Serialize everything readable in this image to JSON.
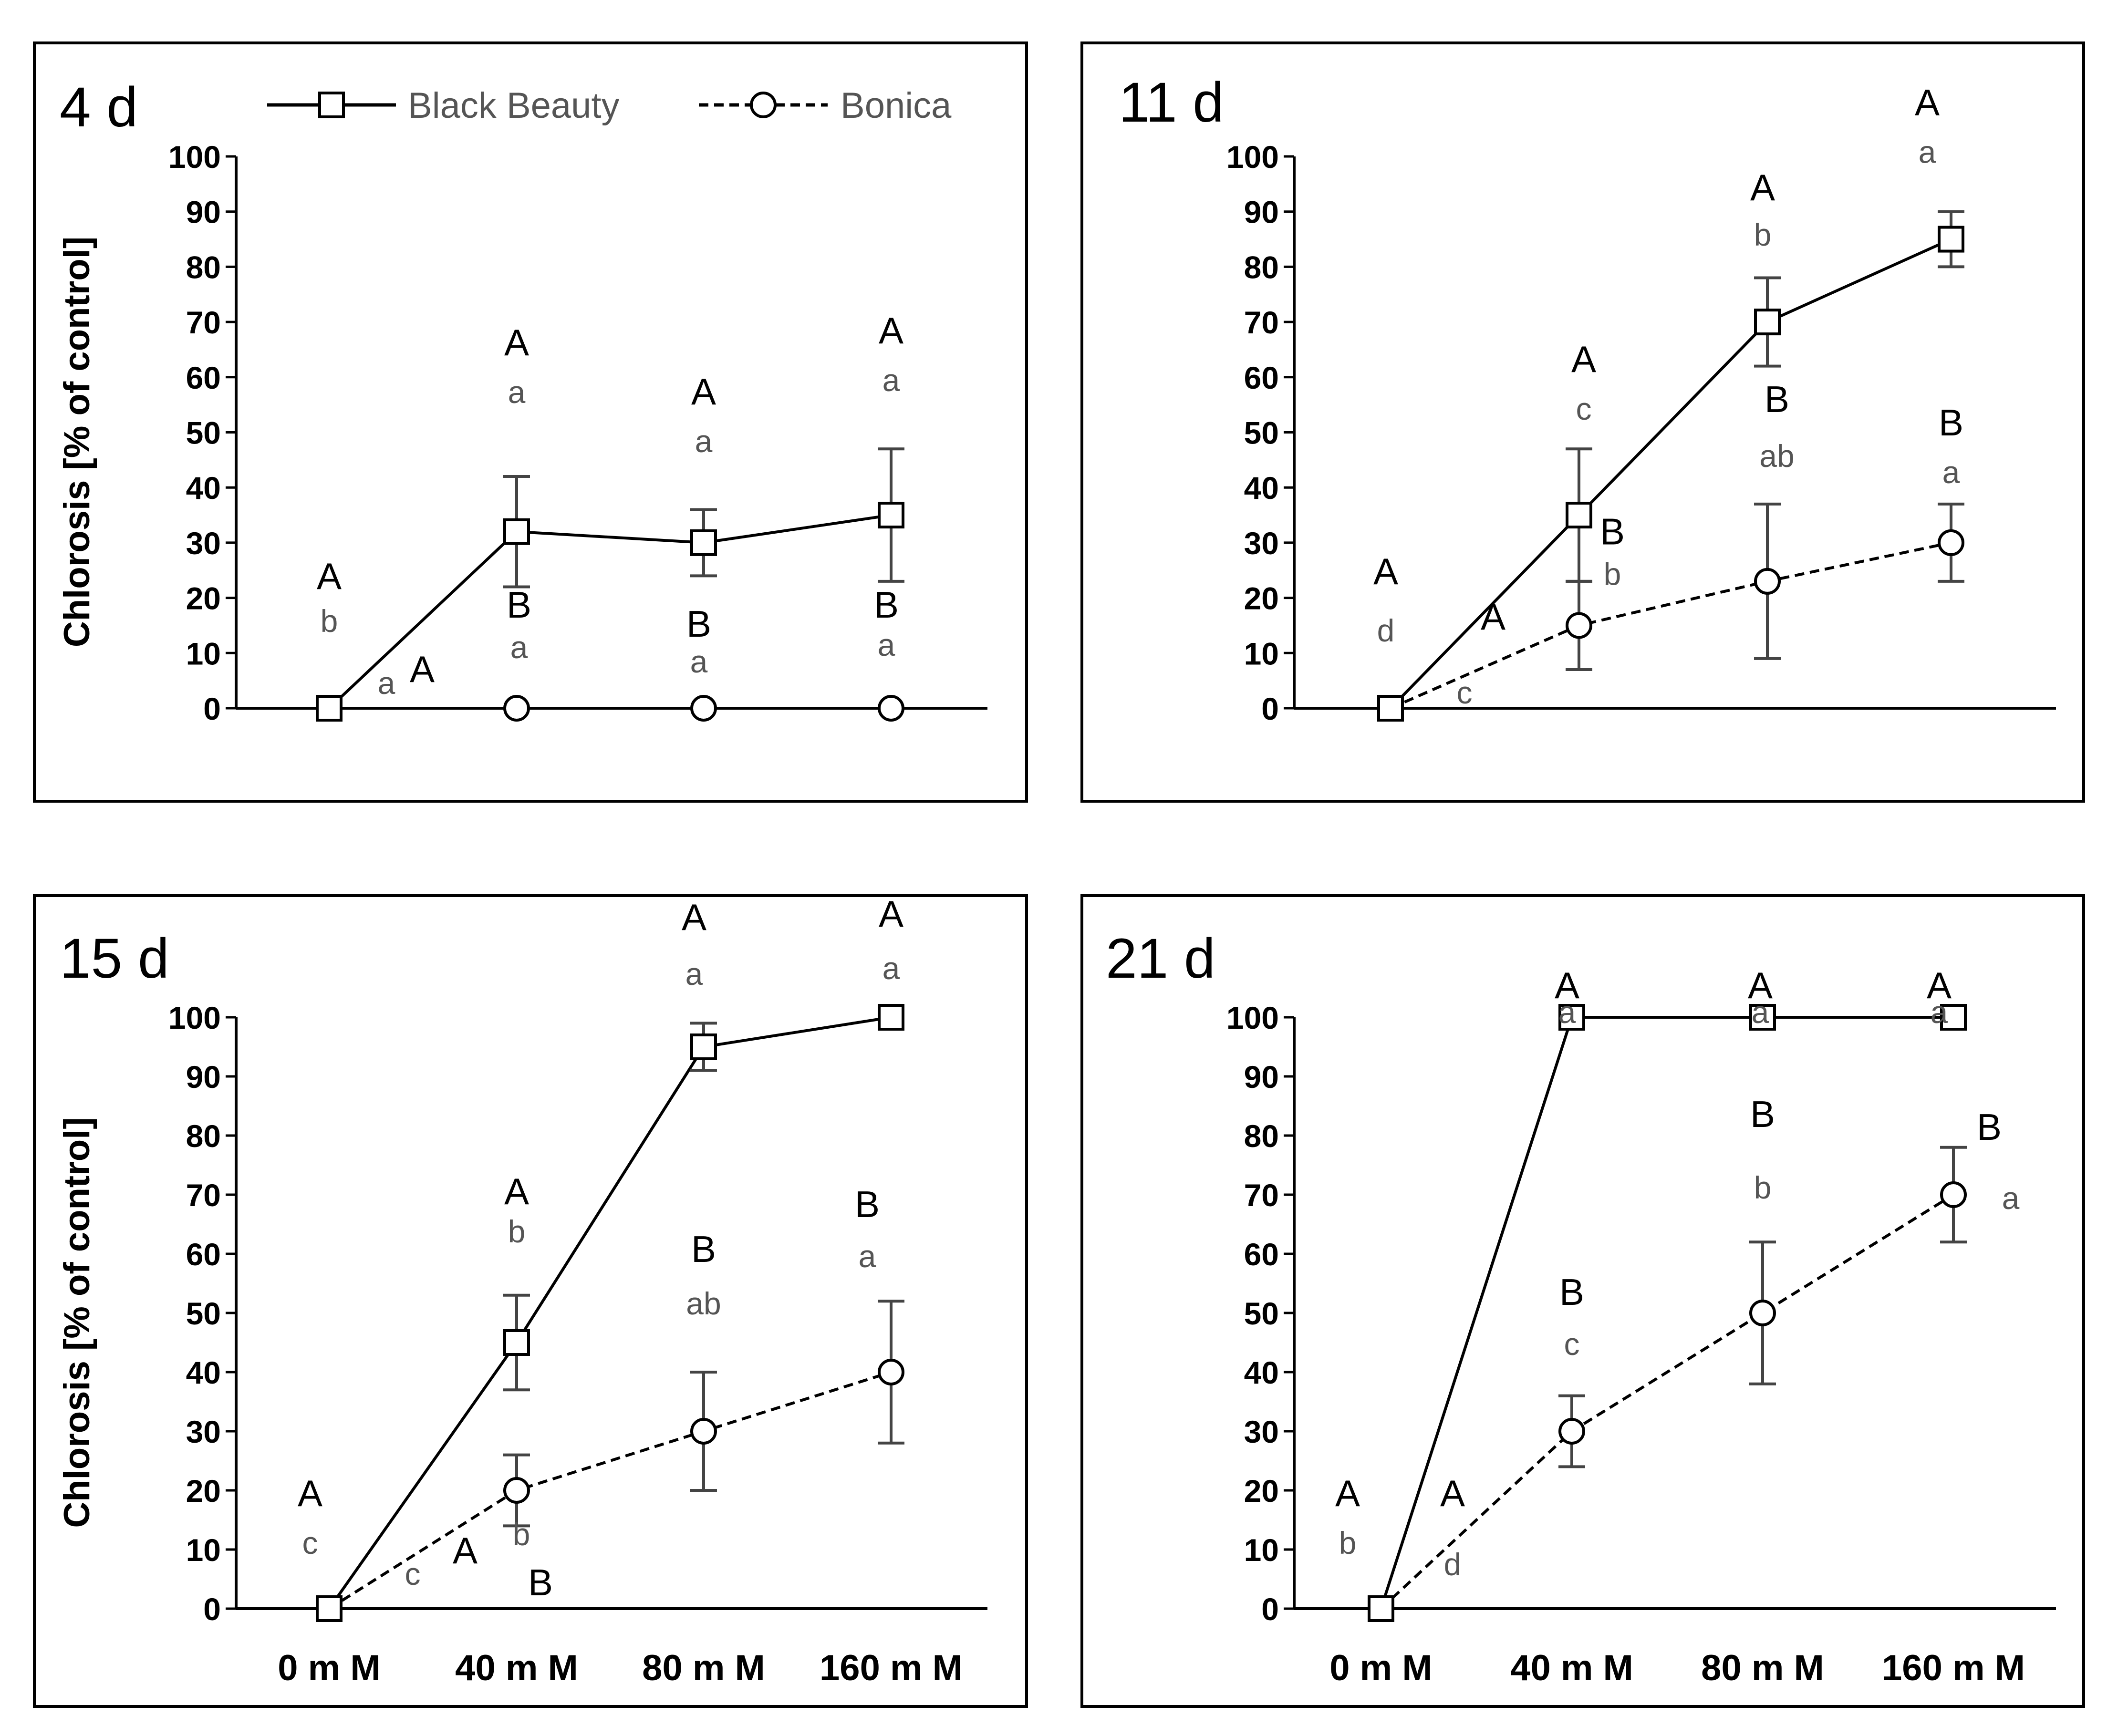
{
  "chart_data": [
    {
      "type": "line",
      "title": "4 d",
      "ylabel": "Chlorosis [% of control]",
      "xlabel": "",
      "ylim": [
        0,
        100
      ],
      "yticks": [
        0,
        10,
        20,
        30,
        40,
        50,
        60,
        70,
        80,
        90,
        100
      ],
      "categories": [
        "0 m M",
        "40 m M",
        "80 m M",
        "160 m M"
      ],
      "show_categories": false,
      "show_ylabel": true,
      "legend": {
        "position": "top",
        "entries": [
          "Black Beauty",
          "Bonica"
        ]
      },
      "series": [
        {
          "name": "Black Beauty",
          "marker": "square",
          "style": "solid",
          "values": [
            0,
            32,
            30,
            35
          ],
          "error": [
            0,
            10,
            6,
            12
          ],
          "upper_letters": [
            "A",
            "A",
            "A",
            "A"
          ],
          "lower_letters": [
            "b",
            "a",
            "a",
            "a"
          ]
        },
        {
          "name": "Bonica",
          "marker": "circle",
          "style": "dashed",
          "values": [
            0,
            0,
            0,
            0
          ],
          "error": [
            0,
            0,
            0,
            0
          ],
          "upper_letters": [
            "A",
            "B",
            "B",
            "B"
          ],
          "lower_letters": [
            "a",
            "a",
            "a",
            "a"
          ]
        }
      ]
    },
    {
      "type": "line",
      "title": "11 d",
      "ylabel": "",
      "xlabel": "",
      "ylim": [
        0,
        100
      ],
      "yticks": [
        0,
        10,
        20,
        30,
        40,
        50,
        60,
        70,
        80,
        90,
        100
      ],
      "categories": [
        "0 m M",
        "40 m M",
        "80 m M",
        "160 m M"
      ],
      "show_categories": false,
      "show_ylabel": false,
      "series": [
        {
          "name": "Black Beauty",
          "marker": "square",
          "style": "solid",
          "values": [
            0,
            35,
            70,
            85
          ],
          "error": [
            0,
            12,
            8,
            5
          ],
          "upper_letters": [
            "A",
            "A",
            "A",
            "A"
          ],
          "lower_letters": [
            "d",
            "c",
            "b",
            "a"
          ]
        },
        {
          "name": "Bonica",
          "marker": "circle",
          "style": "dashed",
          "values": [
            0,
            15,
            23,
            30
          ],
          "error": [
            0,
            8,
            14,
            7
          ],
          "upper_letters": [
            "A",
            "B",
            "B",
            "B"
          ],
          "lower_letters": [
            "c",
            "b",
            "ab",
            "a"
          ]
        }
      ]
    },
    {
      "type": "line",
      "title": "15 d",
      "ylabel": "Chlorosis [% of control]",
      "xlabel": "",
      "ylim": [
        0,
        100
      ],
      "yticks": [
        0,
        10,
        20,
        30,
        40,
        50,
        60,
        70,
        80,
        90,
        100
      ],
      "categories": [
        "0 m M",
        "40 m M",
        "80 m M",
        "160 m M"
      ],
      "show_categories": true,
      "show_ylabel": true,
      "series": [
        {
          "name": "Black Beauty",
          "marker": "square",
          "style": "solid",
          "values": [
            0,
            45,
            95,
            100
          ],
          "error": [
            0,
            8,
            4,
            0
          ],
          "upper_letters": [
            "A",
            "A",
            "A",
            "A"
          ],
          "lower_letters": [
            "c",
            "b",
            "a",
            "a"
          ]
        },
        {
          "name": "Bonica",
          "marker": "circle",
          "style": "dashed",
          "values": [
            0,
            20,
            30,
            40
          ],
          "error": [
            0,
            6,
            10,
            12
          ],
          "upper_letters": [
            "A",
            "B",
            "B",
            "B"
          ],
          "lower_letters": [
            "c",
            "b",
            "ab",
            "a"
          ]
        }
      ]
    },
    {
      "type": "line",
      "title": "21 d",
      "ylabel": "",
      "xlabel": "",
      "ylim": [
        0,
        100
      ],
      "yticks": [
        0,
        10,
        20,
        30,
        40,
        50,
        60,
        70,
        80,
        90,
        100
      ],
      "categories": [
        "0 m M",
        "40 m M",
        "80 m M",
        "160 m M"
      ],
      "show_categories": true,
      "show_ylabel": false,
      "series": [
        {
          "name": "Black Beauty",
          "marker": "square",
          "style": "solid",
          "values": [
            0,
            100,
            100,
            100
          ],
          "error": [
            0,
            0,
            0,
            0
          ],
          "upper_letters": [
            "A",
            "A",
            "A",
            "A"
          ],
          "lower_letters": [
            "b",
            "a",
            "a",
            "a"
          ]
        },
        {
          "name": "Bonica",
          "marker": "circle",
          "style": "dashed",
          "values": [
            0,
            30,
            50,
            70
          ],
          "error": [
            0,
            6,
            12,
            8
          ],
          "upper_letters": [
            "A",
            "B",
            "B",
            "B"
          ],
          "lower_letters": [
            "d",
            "c",
            "b",
            "a"
          ]
        }
      ]
    }
  ]
}
